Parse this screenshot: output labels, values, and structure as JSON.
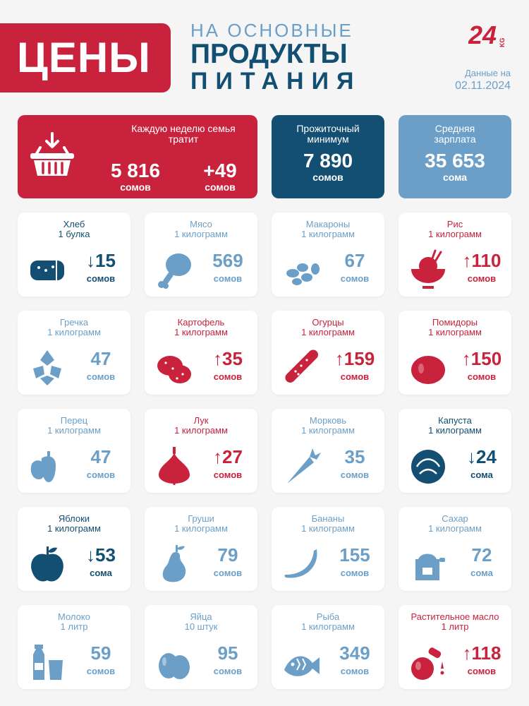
{
  "header": {
    "badge": "ЦЕНЫ",
    "subtitle": "НА ОСНОВНЫЕ",
    "title_line1": "ПРОДУКТЫ",
    "title_line2": "ПИТАНИЯ",
    "logo_text": "24",
    "logo_suffix": "KG",
    "date_label": "Данные на",
    "date_value": "02.11.2024"
  },
  "summary": {
    "weekly": {
      "label": "Каждую неделю семья тратит",
      "value": "5 816",
      "unit": "сомов",
      "change": "+49",
      "change_unit": "сомов"
    },
    "minimum": {
      "label": "Прожиточный минимум",
      "value": "7 890",
      "unit": "сомов"
    },
    "salary": {
      "label": "Средняя зарплата",
      "value": "35 653",
      "unit": "сома"
    }
  },
  "colors": {
    "red": "#c8223d",
    "navy": "#124f72",
    "light_blue": "#6c9fc7"
  },
  "products": [
    {
      "name": "Хлеб",
      "unit": "1 булка",
      "price": "↓15",
      "currency": "сомов",
      "color": "navy",
      "icon": "bread-icon"
    },
    {
      "name": "Мясо",
      "unit": "1 килограмм",
      "price": "569",
      "currency": "сомов",
      "color": "blue",
      "icon": "meat-icon"
    },
    {
      "name": "Макароны",
      "unit": "1 килограмм",
      "price": "67",
      "currency": "сомов",
      "color": "blue",
      "icon": "pasta-icon"
    },
    {
      "name": "Рис",
      "unit": "1 килограмм",
      "price": "↑110",
      "currency": "сомов",
      "color": "red",
      "icon": "rice-icon"
    },
    {
      "name": "Гречка",
      "unit": "1 килограмм",
      "price": "47",
      "currency": "сомов",
      "color": "blue",
      "icon": "buckwheat-icon"
    },
    {
      "name": "Картофель",
      "unit": "1 килограмм",
      "price": "↑35",
      "currency": "сомов",
      "color": "red",
      "icon": "potato-icon"
    },
    {
      "name": "Огурцы",
      "unit": "1 килограмм",
      "price": "↑159",
      "currency": "сомов",
      "color": "red",
      "icon": "cucumber-icon"
    },
    {
      "name": "Помидоры",
      "unit": "1 килограмм",
      "price": "↑150",
      "currency": "сомов",
      "color": "red",
      "icon": "tomato-icon"
    },
    {
      "name": "Перец",
      "unit": "1 килограмм",
      "price": "47",
      "currency": "сомов",
      "color": "blue",
      "icon": "pepper-icon"
    },
    {
      "name": "Лук",
      "unit": "1 килограмм",
      "price": "↑27",
      "currency": "сомов",
      "color": "red",
      "icon": "onion-icon"
    },
    {
      "name": "Морковь",
      "unit": "1 килограмм",
      "price": "35",
      "currency": "сомов",
      "color": "blue",
      "icon": "carrot-icon"
    },
    {
      "name": "Капуста",
      "unit": "1 килограмм",
      "price": "↓24",
      "currency": "сома",
      "color": "navy",
      "icon": "cabbage-icon"
    },
    {
      "name": "Яблоки",
      "unit": "1 килограмм",
      "price": "↓53",
      "currency": "сома",
      "color": "navy",
      "icon": "apple-icon"
    },
    {
      "name": "Груши",
      "unit": "1 килограмм",
      "price": "79",
      "currency": "сомов",
      "color": "blue",
      "icon": "pear-icon"
    },
    {
      "name": "Бананы",
      "unit": "1 килограмм",
      "price": "155",
      "currency": "сомов",
      "color": "blue",
      "icon": "banana-icon"
    },
    {
      "name": "Сахар",
      "unit": "1 килограмм",
      "price": "72",
      "currency": "сома",
      "color": "blue",
      "icon": "sugar-icon"
    },
    {
      "name": "Молоко",
      "unit": "1 литр",
      "price": "59",
      "currency": "сомов",
      "color": "blue",
      "icon": "milk-icon"
    },
    {
      "name": "Яйца",
      "unit": "10 штук",
      "price": "95",
      "currency": "сомов",
      "color": "blue",
      "icon": "eggs-icon"
    },
    {
      "name": "Рыба",
      "unit": "1 килограмм",
      "price": "349",
      "currency": "сомов",
      "color": "blue",
      "icon": "fish-icon"
    },
    {
      "name": "Растительное масло",
      "unit": "1 литр",
      "price": "↑118",
      "currency": "сомов",
      "color": "red",
      "icon": "oil-icon"
    }
  ]
}
